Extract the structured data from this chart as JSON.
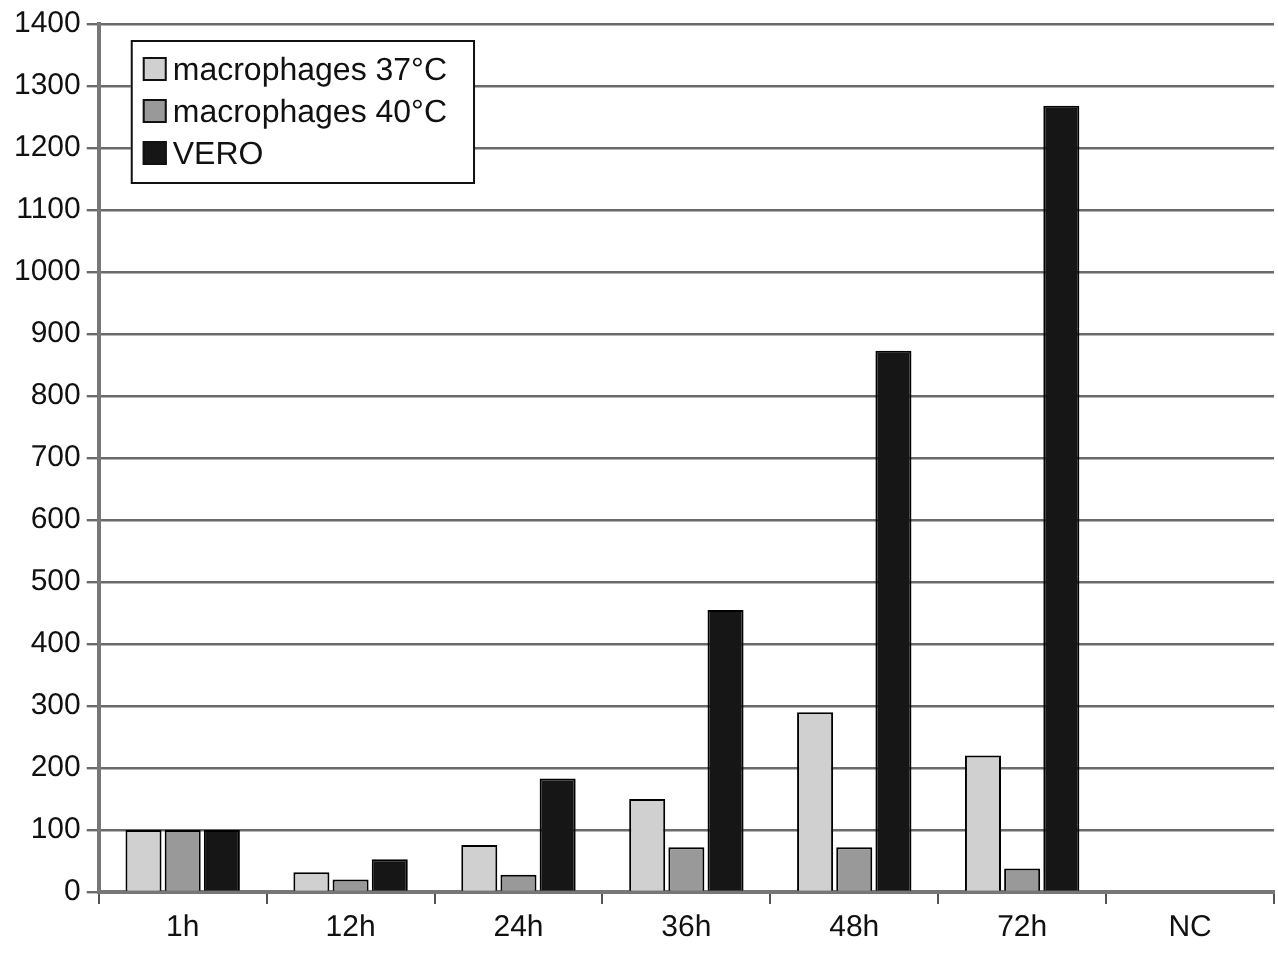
{
  "chart_data": {
    "type": "bar",
    "categories": [
      "1h",
      "12h",
      "24h",
      "36h",
      "48h",
      "72h",
      "NC"
    ],
    "series": [
      {
        "name": "macrophages 37°C",
        "color": "#d0d0d0",
        "values": [
          100,
          32,
          76,
          150,
          290,
          220,
          null
        ]
      },
      {
        "name": "macrophages 40°C",
        "color": "#999999",
        "values": [
          100,
          20,
          28,
          72,
          72,
          38,
          null
        ]
      },
      {
        "name": "VERO",
        "color": "#161616",
        "values": [
          100,
          53,
          183,
          455,
          873,
          1268,
          null
        ]
      }
    ],
    "ylim": [
      0,
      1400
    ],
    "yticks": [
      0,
      100,
      200,
      300,
      400,
      500,
      600,
      700,
      800,
      900,
      1000,
      1100,
      1200,
      1300,
      1400
    ],
    "grid": "y",
    "legend": "top left"
  }
}
